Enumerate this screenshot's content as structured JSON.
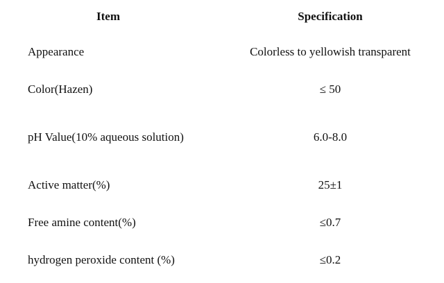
{
  "table": {
    "header": {
      "item": "Item",
      "specification": "Specification"
    },
    "rows": [
      {
        "item": "Appearance",
        "specification": "Colorless to yellowish transparent"
      },
      {
        "item": "Color(Hazen)",
        "specification": "≤ 50"
      },
      {
        "item": "pH Value(10% aqueous solution)",
        "specification": "6.0-8.0"
      },
      {
        "item": "Active matter(%)",
        "specification": "25±1"
      },
      {
        "item": "Free amine content(%)",
        "specification": "≤0.7"
      },
      {
        "item": "hydrogen peroxide content (%)",
        "specification": "≤0.2"
      }
    ]
  }
}
